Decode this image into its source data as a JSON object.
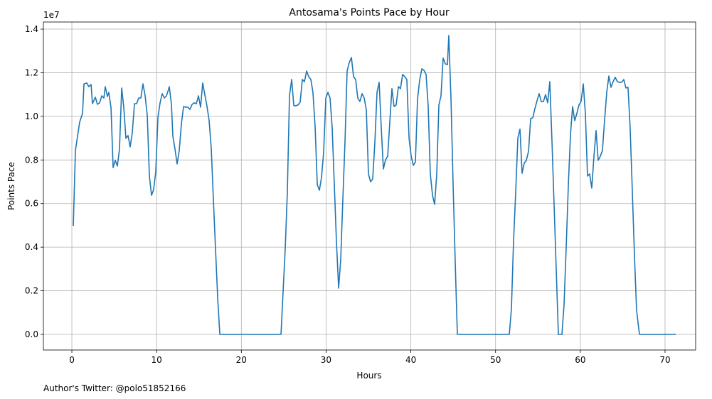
{
  "chart_data": {
    "type": "line",
    "title": "Antosama's Points Pace by Hour",
    "x_label": "Hours",
    "y_label": "Points Pace",
    "y_offset_label": "1e7",
    "footer": "Author's Twitter: @polo51852166",
    "color": "#1f77b4",
    "grid": true,
    "xlim": [
      -3.36,
      73.61
    ],
    "ylim": [
      -716000,
      14326000
    ],
    "xticks": [
      0,
      10,
      20,
      30,
      40,
      50,
      60,
      70
    ],
    "yticks": [
      {
        "value": 0,
        "label": "0.0"
      },
      {
        "value": 2000000,
        "label": "0.2"
      },
      {
        "value": 4000000,
        "label": "0.4"
      },
      {
        "value": 6000000,
        "label": "0.6"
      },
      {
        "value": 8000000,
        "label": "0.8"
      },
      {
        "value": 10000000,
        "label": "1.0"
      },
      {
        "value": 12000000,
        "label": "1.2"
      },
      {
        "value": 14000000,
        "label": "1.4"
      }
    ],
    "x": [
      0.17,
      0.42,
      0.92,
      1.26,
      1.43,
      1.76,
      2.0,
      2.27,
      2.43,
      2.77,
      3.02,
      3.27,
      3.53,
      3.78,
      3.94,
      4.2,
      4.36,
      4.62,
      4.87,
      5.12,
      5.37,
      5.62,
      5.88,
      6.13,
      6.38,
      6.63,
      6.88,
      7.13,
      7.39,
      7.64,
      7.89,
      8.14,
      8.39,
      8.65,
      8.9,
      9.15,
      9.4,
      9.65,
      9.9,
      10.16,
      10.41,
      10.66,
      10.91,
      11.16,
      11.33,
      11.5,
      11.75,
      11.92,
      12.17,
      12.42,
      12.67,
      12.93,
      13.18,
      13.43,
      13.68,
      13.93,
      14.19,
      14.44,
      14.69,
      14.94,
      15.19,
      15.44,
      15.7,
      15.95,
      16.2,
      16.45,
      16.7,
      16.95,
      17.21,
      17.46,
      24.68,
      24.93,
      25.18,
      25.43,
      25.68,
      25.94,
      26.19,
      26.44,
      26.69,
      26.94,
      27.2,
      27.45,
      27.7,
      27.95,
      28.2,
      28.45,
      28.71,
      28.96,
      29.21,
      29.46,
      29.71,
      29.97,
      30.22,
      30.47,
      30.72,
      30.97,
      31.22,
      31.48,
      31.73,
      31.98,
      32.23,
      32.48,
      32.74,
      32.99,
      33.24,
      33.49,
      33.74,
      33.99,
      34.25,
      34.5,
      34.75,
      35.0,
      35.25,
      35.5,
      35.76,
      36.01,
      36.26,
      36.51,
      36.76,
      37.02,
      37.27,
      37.52,
      37.77,
      38.02,
      38.27,
      38.53,
      38.78,
      39.03,
      39.28,
      39.53,
      39.79,
      40.04,
      40.29,
      40.54,
      40.79,
      41.04,
      41.3,
      41.55,
      41.8,
      42.05,
      42.3,
      42.56,
      42.81,
      43.06,
      43.31,
      43.56,
      43.81,
      44.07,
      44.32,
      44.48,
      44.74,
      44.99,
      45.24,
      45.49,
      51.62,
      51.87,
      52.12,
      52.38,
      52.63,
      52.88,
      53.13,
      53.38,
      53.63,
      53.89,
      54.14,
      54.39,
      54.64,
      54.89,
      55.14,
      55.4,
      55.65,
      55.9,
      56.15,
      56.4,
      56.66,
      56.91,
      57.16,
      57.41,
      57.83,
      58.08,
      58.33,
      58.59,
      58.84,
      59.09,
      59.34,
      59.59,
      59.84,
      60.09,
      60.35,
      60.6,
      60.85,
      61.1,
      61.35,
      61.61,
      61.86,
      62.11,
      62.36,
      62.61,
      62.86,
      63.12,
      63.37,
      63.62,
      63.87,
      64.12,
      64.37,
      64.63,
      64.88,
      65.13,
      65.38,
      65.63,
      65.88,
      66.14,
      66.39,
      66.64,
      66.98,
      71.26
    ],
    "values": [
      4980000,
      8430000,
      9740000,
      10130000,
      11490000,
      11530000,
      11360000,
      11460000,
      10580000,
      10880000,
      10550000,
      10620000,
      10940000,
      10840000,
      11360000,
      10910000,
      11100000,
      10390000,
      7650000,
      7980000,
      7720000,
      8500000,
      11300000,
      10390000,
      8990000,
      9120000,
      8600000,
      9250000,
      10580000,
      10580000,
      10840000,
      10840000,
      11490000,
      10940000,
      10030000,
      7260000,
      6380000,
      6640000,
      7460000,
      9960000,
      10620000,
      11040000,
      10840000,
      10940000,
      11140000,
      11360000,
      10550000,
      9080000,
      8500000,
      7820000,
      8430000,
      9670000,
      10450000,
      10420000,
      10420000,
      10320000,
      10550000,
      10620000,
      10580000,
      10940000,
      10420000,
      11530000,
      10970000,
      10450000,
      9800000,
      8530000,
      6190000,
      3940000,
      1660000,
      0,
      0,
      1990000,
      3940000,
      6550000,
      10940000,
      11690000,
      10490000,
      10490000,
      10520000,
      10650000,
      11690000,
      11590000,
      12080000,
      11820000,
      11690000,
      11100000,
      9480000,
      6870000,
      6610000,
      7200000,
      8340000,
      10840000,
      11100000,
      10840000,
      9480000,
      6870000,
      4270000,
      2120000,
      3450000,
      6220000,
      8820000,
      12080000,
      12470000,
      12700000,
      11820000,
      11690000,
      10840000,
      10680000,
      11040000,
      10840000,
      10290000,
      7360000,
      7000000,
      7130000,
      8820000,
      11100000,
      11560000,
      9480000,
      7590000,
      8010000,
      8170000,
      9740000,
      11270000,
      10450000,
      10520000,
      11360000,
      11270000,
      11920000,
      11820000,
      11690000,
      8990000,
      8170000,
      7750000,
      7910000,
      10780000,
      11660000,
      12180000,
      12110000,
      11920000,
      10450000,
      7360000,
      6380000,
      5960000,
      7360000,
      10520000,
      10940000,
      12670000,
      12410000,
      12370000,
      13710000,
      10780000,
      6870000,
      3290000,
      0,
      0,
      1170000,
      4270000,
      6550000,
      9020000,
      9410000,
      7390000,
      7850000,
      7980000,
      8400000,
      9900000,
      9930000,
      10350000,
      10710000,
      11040000,
      10680000,
      10680000,
      11000000,
      10620000,
      11590000,
      8820000,
      5890000,
      2960000,
      0,
      0,
      1340000,
      3940000,
      6870000,
      9150000,
      10450000,
      9800000,
      10130000,
      10520000,
      10680000,
      11490000,
      10130000,
      7260000,
      7360000,
      6710000,
      8170000,
      9350000,
      7980000,
      8170000,
      8430000,
      9800000,
      11100000,
      11850000,
      11330000,
      11590000,
      11790000,
      11590000,
      11560000,
      11560000,
      11690000,
      11300000,
      11330000,
      9480000,
      6550000,
      3610000,
      1110000,
      0,
      0
    ]
  }
}
